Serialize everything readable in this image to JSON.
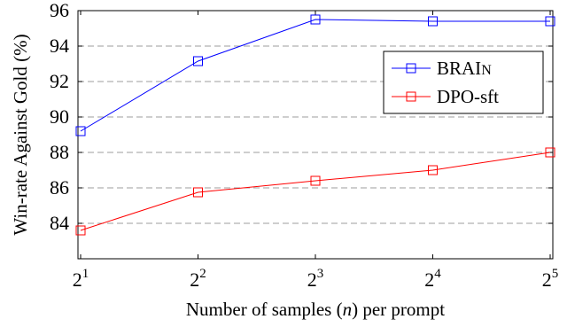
{
  "chart_data": {
    "type": "line",
    "title": "",
    "xlabel": "Number of samples (n) per prompt",
    "ylabel": "Win-rate Against Gold (%)",
    "x_scale": "log2",
    "x": [
      2,
      4,
      8,
      16,
      32
    ],
    "x_ticks": [
      {
        "base": "2",
        "exp": "1"
      },
      {
        "base": "2",
        "exp": "2"
      },
      {
        "base": "2",
        "exp": "3"
      },
      {
        "base": "2",
        "exp": "4"
      },
      {
        "base": "2",
        "exp": "5"
      }
    ],
    "y_ticks": [
      "84",
      "86",
      "88",
      "90",
      "92",
      "94",
      "96"
    ],
    "ylim": [
      82,
      96
    ],
    "grid": "horizontal dashed",
    "legend_position": "top-right",
    "series": [
      {
        "name": "BRAIN",
        "name_parts": [
          "BRAI",
          "N"
        ],
        "color": "#0000ff",
        "marker": "square",
        "values": [
          89.2,
          93.15,
          95.5,
          95.4,
          95.4
        ]
      },
      {
        "name": "DPO-sft",
        "color": "#ff0000",
        "marker": "square",
        "values": [
          83.6,
          85.75,
          86.4,
          87.0,
          88.0
        ]
      }
    ]
  }
}
